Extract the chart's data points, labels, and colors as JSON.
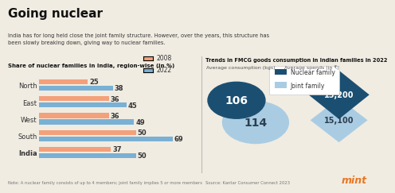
{
  "title": "Going nuclear",
  "subtitle": "India has for long held close the joint family structure. However, over the years, this structure has\nbeen slowly breaking down, giving way to nuclear families.",
  "bar_title": "Share of nuclear families in India, region-wise (in %)",
  "fmcg_title": "Trends in FMCG goods consumption in Indian families in 2022",
  "regions": [
    "North",
    "East",
    "West",
    "South",
    "India"
  ],
  "values_2008": [
    25,
    36,
    36,
    50,
    37
  ],
  "values_2022": [
    38,
    45,
    49,
    69,
    50
  ],
  "color_2008": "#f4a07a",
  "color_2022": "#7ab0d4",
  "avg_consumption_label": "Average consumption (kgs)",
  "avg_spends_label": "Average spends (in ₹)",
  "nuclear_consumption": "106",
  "joint_consumption": "114",
  "nuclear_spends": "15,200",
  "joint_spends": "15,100",
  "nuclear_color_dark": "#1b4f72",
  "joint_color_light": "#a9cce3",
  "legend_nuclear": "Nuclear family",
  "legend_joint": "Joint family",
  "note": "Note: A nuclear family consists of up to 4 members; joint family implies 5 or more members",
  "source": "Source: Kantar Consumer Connect 2023",
  "mint_color": "#e87722",
  "bg_color": "#f0ece2",
  "india_label_bold": true
}
